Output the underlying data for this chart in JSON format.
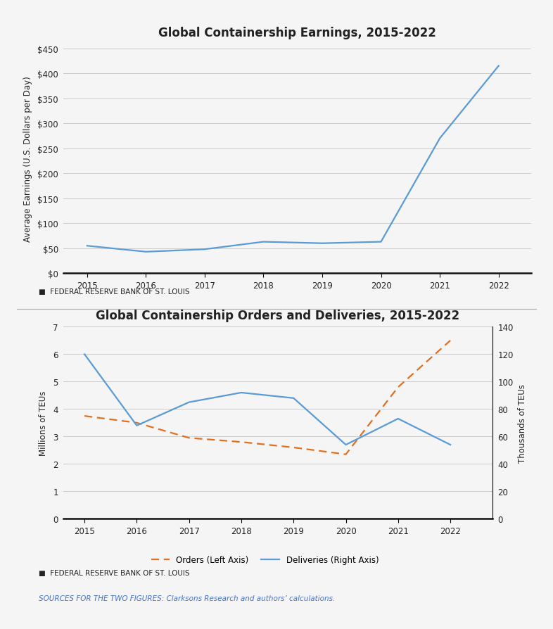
{
  "chart1": {
    "title": "Global Containership Earnings, 2015-2022",
    "ylabel": "Average Earnings (U.S. Dollars per Day)",
    "years": [
      2015,
      2016,
      2017,
      2018,
      2019,
      2020,
      2021,
      2022
    ],
    "earnings": [
      55,
      43,
      48,
      63,
      60,
      63,
      270,
      415
    ],
    "line_color": "#5b9bd5",
    "yticks": [
      0,
      50,
      100,
      150,
      200,
      250,
      300,
      350,
      400,
      450
    ],
    "ylim": [
      0,
      460
    ],
    "ytick_labels": [
      "$0",
      "$50",
      "$100",
      "$150",
      "$200",
      "$250",
      "$300",
      "$350",
      "$400",
      "$450"
    ],
    "source_label": "■  FEDERAL RESERVE BANK OF ST. LOUIS"
  },
  "chart2": {
    "title": "Global Containership Orders and Deliveries, 2015-2022",
    "ylabel_left": "Millions of TEUs",
    "ylabel_right": "Thousands of TEUs",
    "years": [
      2015,
      2016,
      2017,
      2018,
      2019,
      2020,
      2021,
      2022
    ],
    "orders": [
      3.75,
      3.5,
      2.95,
      2.8,
      2.6,
      2.35,
      4.8,
      6.5
    ],
    "deliveries": [
      120,
      68,
      85,
      92,
      88,
      54,
      73,
      54
    ],
    "orders_color": "#e07020",
    "deliveries_color": "#5b9bd5",
    "left_yticks": [
      0,
      1,
      2,
      3,
      4,
      5,
      6,
      7
    ],
    "left_ylim": [
      0,
      7
    ],
    "right_yticks": [
      0,
      20,
      40,
      60,
      80,
      100,
      120,
      140
    ],
    "right_ylim": [
      0,
      140
    ],
    "legend_orders": "Orders (Left Axis)",
    "legend_deliveries": "Deliveries (Right Axis)",
    "source_label": "■  FEDERAL RESERVE BANK OF ST. LOUIS"
  },
  "sources_text": "SOURCES FOR THE TWO FIGURES: Clarksons Research and authors’ calculations.",
  "background_color": "#f5f5f5",
  "grid_color": "#cccccc",
  "text_color": "#222222",
  "title_fontsize": 12,
  "axis_label_fontsize": 8.5,
  "tick_fontsize": 8.5,
  "source_fontsize": 7.5,
  "sources_text_color": "#4472c4"
}
